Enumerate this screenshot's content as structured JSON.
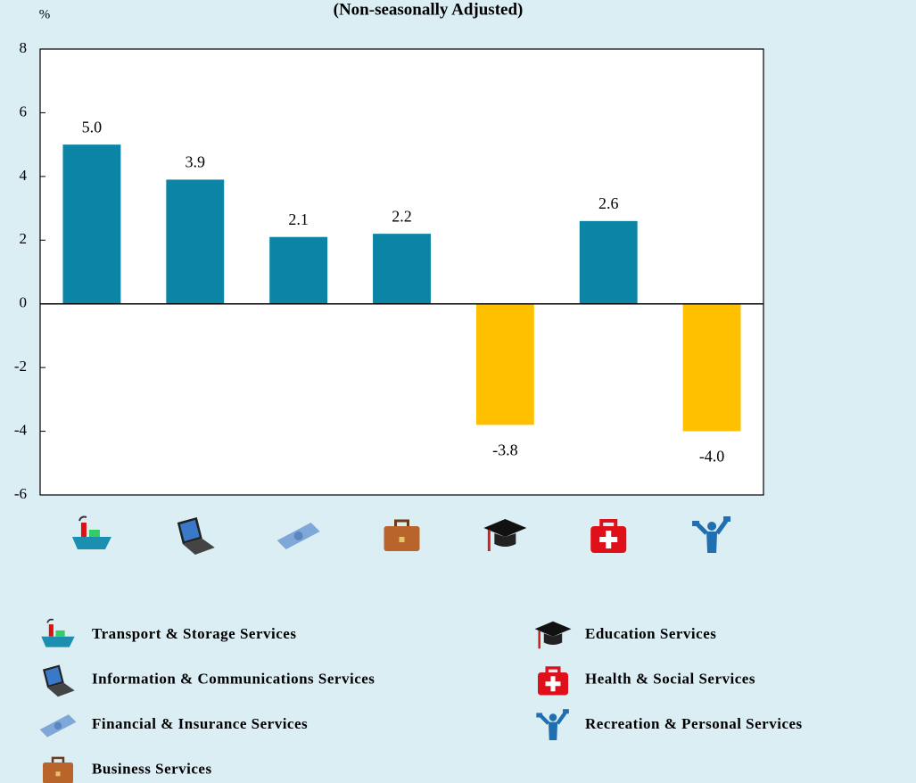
{
  "chart_data": {
    "type": "bar",
    "subtitle": "(Non-seasonally Adjusted)",
    "y_axis_label": "%",
    "categories": [
      "Transport & Storage Services",
      "Information & Communications Services",
      "Financial & Insurance Services",
      "Business Services",
      "Education Services",
      "Health & Social Services",
      "Recreation & Personal Services"
    ],
    "values": [
      5.0,
      3.9,
      2.1,
      2.2,
      -3.8,
      2.6,
      -4.0
    ],
    "value_labels": [
      "5.0",
      "3.9",
      "2.1",
      "2.2",
      "-3.8",
      "2.6",
      "-4.0"
    ],
    "colors": [
      "#0b84a5",
      "#0b84a5",
      "#0b84a5",
      "#0b84a5",
      "#ffc000",
      "#0b84a5",
      "#ffc000"
    ],
    "ylim": [
      -6,
      8
    ],
    "yticks": [
      -6,
      -4,
      -2,
      0,
      2,
      4,
      6,
      8
    ],
    "grid": false
  }
}
